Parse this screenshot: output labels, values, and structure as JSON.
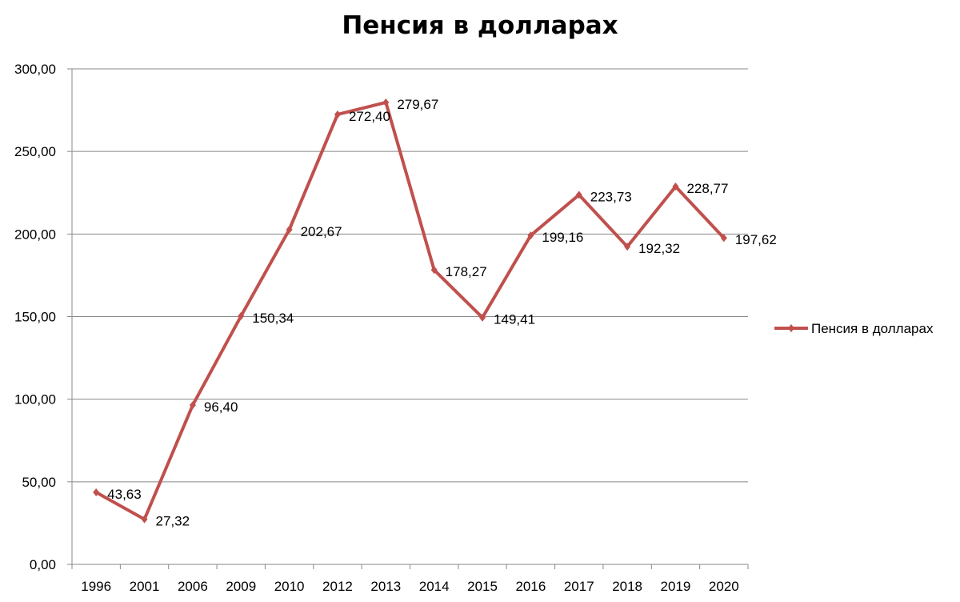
{
  "chart_data": {
    "type": "line",
    "title": "Пенсия в долларах",
    "categories": [
      "1996",
      "2001",
      "2006",
      "2009",
      "2010",
      "2012",
      "2013",
      "2014",
      "2015",
      "2016",
      "2017",
      "2018",
      "2019",
      "2020"
    ],
    "series": [
      {
        "name": "Пенсия в долларах",
        "values": [
          43.63,
          27.32,
          96.4,
          150.34,
          202.67,
          272.4,
          279.67,
          178.27,
          149.41,
          199.16,
          223.73,
          192.32,
          228.77,
          197.62
        ],
        "labels": [
          "43,63",
          "27,32",
          "96,40",
          "150,34",
          "202,67",
          "272,40",
          "279,67",
          "178,27",
          "149,41",
          "199,16",
          "223,73",
          "192,32",
          "228,77",
          "197,62"
        ]
      }
    ],
    "y_ticks": [
      "0,00",
      "50,00",
      "100,00",
      "150,00",
      "200,00",
      "250,00",
      "300,00"
    ],
    "ylim": [
      0,
      300
    ],
    "xlabel": "",
    "ylabel": "",
    "grid": true,
    "legend": "right",
    "colors": {
      "series": "#c0504d",
      "grid": "#888888",
      "axis": "#888888"
    }
  }
}
